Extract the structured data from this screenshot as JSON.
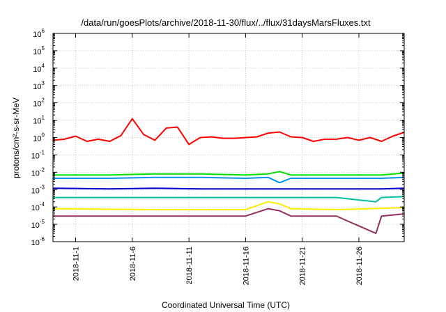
{
  "chart_data": {
    "type": "line",
    "title": "/data/run/goesPlots/archive/2018-11-30/flux/../flux/31daysMarsFluxes.txt",
    "xlabel": "Coordinated Universal Time (UTC)",
    "ylabel": "protons/cm²-s-sr-MeV",
    "yscale": "log",
    "ylim": [
      1e-06,
      1000000.0
    ],
    "xlim": [
      "2018-10-30",
      "2018-11-30"
    ],
    "grid": true,
    "legend": "none",
    "y_tick_exponents": [
      "-6",
      "-5",
      "-4",
      "-3",
      "-2",
      "-1",
      "0",
      "1",
      "2",
      "3",
      "4",
      "5",
      "6"
    ],
    "y_tick_base": "10",
    "x_ticks": [
      "2018-11-1",
      "2018-11-6",
      "2018-11-11",
      "2018-11-16",
      "2018-11-21",
      "2018-11-26"
    ],
    "series": [
      {
        "color": "#ff0000",
        "x": [
          "2018-10-30",
          "2018-10-31",
          "2018-11-01",
          "2018-11-02",
          "2018-11-03",
          "2018-11-04",
          "2018-11-05",
          "2018-11-05T12",
          "2018-11-06",
          "2018-11-07",
          "2018-11-08",
          "2018-11-09",
          "2018-11-10",
          "2018-11-11",
          "2018-11-12",
          "2018-11-13",
          "2018-11-14",
          "2018-11-15",
          "2018-11-16",
          "2018-11-17",
          "2018-11-18",
          "2018-11-19",
          "2018-11-20",
          "2018-11-21",
          "2018-11-22",
          "2018-11-23",
          "2018-11-24",
          "2018-11-25",
          "2018-11-26",
          "2018-11-27",
          "2018-11-28",
          "2018-11-29",
          "2018-11-30"
        ],
        "y": [
          0.7,
          0.8,
          1.2,
          0.6,
          0.8,
          0.6,
          1.3,
          4.0,
          12,
          1.5,
          0.7,
          3.5,
          4.0,
          0.4,
          1.0,
          1.1,
          0.9,
          0.9,
          1.0,
          1.1,
          1.8,
          2.1,
          1.1,
          1.0,
          0.6,
          0.8,
          0.8,
          1.0,
          0.7,
          1.0,
          0.6,
          1.2,
          2.0
        ]
      },
      {
        "color": "#00e000",
        "x": [
          "2018-10-30",
          "2018-11-04",
          "2018-11-08",
          "2018-11-12",
          "2018-11-16",
          "2018-11-18",
          "2018-11-19",
          "2018-11-20",
          "2018-11-24",
          "2018-11-28",
          "2018-11-30"
        ],
        "y": [
          0.007,
          0.007,
          0.008,
          0.008,
          0.007,
          0.008,
          0.011,
          0.007,
          0.007,
          0.007,
          0.009
        ]
      },
      {
        "color": "#0090f0",
        "x": [
          "2018-10-30",
          "2018-11-04",
          "2018-11-08",
          "2018-11-12",
          "2018-11-16",
          "2018-11-18",
          "2018-11-19",
          "2018-11-20",
          "2018-11-24",
          "2018-11-28",
          "2018-11-30"
        ],
        "y": [
          0.0045,
          0.0045,
          0.005,
          0.005,
          0.0045,
          0.005,
          0.0025,
          0.0045,
          0.0045,
          0.0045,
          0.005
        ]
      },
      {
        "color": "#0000d0",
        "x": [
          "2018-10-30",
          "2018-11-04",
          "2018-11-08",
          "2018-11-12",
          "2018-11-16",
          "2018-11-20",
          "2018-11-24",
          "2018-11-28",
          "2018-11-30"
        ],
        "y": [
          0.0012,
          0.0011,
          0.0012,
          0.0011,
          0.0011,
          0.0011,
          0.0011,
          0.0011,
          0.0012
        ]
      },
      {
        "color": "#00c0a0",
        "x": [
          "2018-10-30",
          "2018-11-08",
          "2018-11-16",
          "2018-11-24",
          "2018-11-27T12",
          "2018-11-28",
          "2018-11-30"
        ],
        "y": [
          0.00035,
          0.00035,
          0.00035,
          0.00035,
          0.0002,
          0.00035,
          0.0004
        ]
      },
      {
        "color": "#ffee00",
        "x": [
          "2018-10-30",
          "2018-11-08",
          "2018-11-16",
          "2018-11-18",
          "2018-11-19",
          "2018-11-20",
          "2018-11-24",
          "2018-11-30"
        ],
        "y": [
          8e-05,
          7e-05,
          7e-05,
          0.0002,
          0.00015,
          8e-05,
          7e-05,
          9e-05
        ]
      },
      {
        "color": "#903060",
        "x": [
          "2018-10-30",
          "2018-11-08",
          "2018-11-16",
          "2018-11-18",
          "2018-11-19",
          "2018-11-20",
          "2018-11-24",
          "2018-11-27T12",
          "2018-11-28",
          "2018-11-30"
        ],
        "y": [
          3e-05,
          3e-05,
          3e-05,
          8e-05,
          6e-05,
          3e-05,
          3e-05,
          3e-06,
          3e-05,
          4e-05
        ]
      }
    ]
  }
}
